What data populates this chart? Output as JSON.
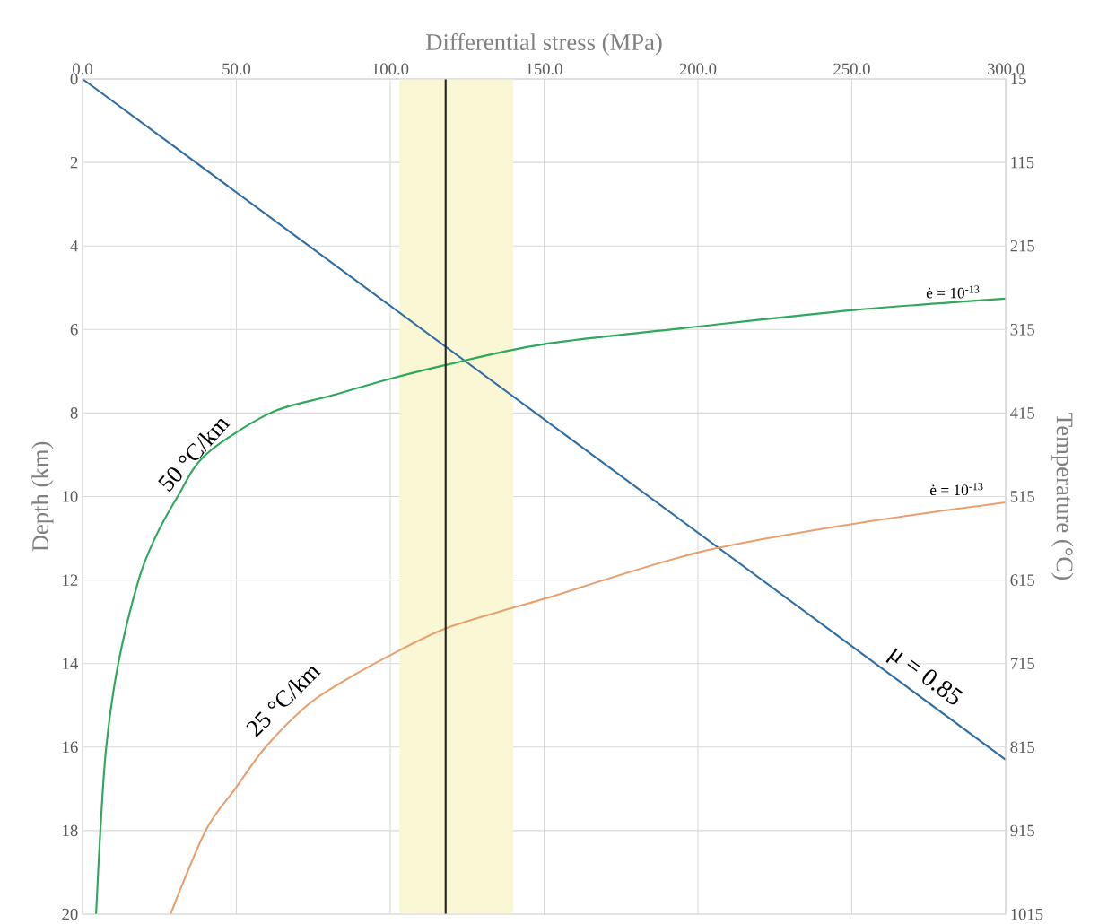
{
  "chart_data": {
    "type": "line",
    "xlabel": "Differential stress (MPa)",
    "ylabel": "Depth (km)",
    "y2label": "Temperature (°C)",
    "xlim": [
      0,
      300
    ],
    "xticks": [
      {
        "value": 0,
        "label": "0.0"
      },
      {
        "value": 50,
        "label": "50.0"
      },
      {
        "value": 100,
        "label": "100.0"
      },
      {
        "value": 150,
        "label": "150.0"
      },
      {
        "value": 200,
        "label": "200.0"
      },
      {
        "value": 250,
        "label": "250.0"
      },
      {
        "value": 300,
        "label": "300.0"
      }
    ],
    "ylim": [
      20,
      0
    ],
    "yticks": [
      0,
      2,
      4,
      6,
      8,
      10,
      12,
      14,
      16,
      18,
      20
    ],
    "y2lim": [
      1015,
      15
    ],
    "y2ticks": [
      15,
      115,
      215,
      315,
      415,
      515,
      615,
      715,
      815,
      915,
      1015
    ],
    "grid": true,
    "series": [
      {
        "color": "#2e6ca4",
        "x": [
          0,
          300
        ],
        "values": [
          0,
          16.3
        ]
      },
      {
        "color": "#2ea85a",
        "x": [
          4.4,
          5.8,
          7.7,
          11.6,
          18.2,
          23.5,
          30.9,
          40,
          61,
          80,
          100,
          118,
          150,
          200,
          250,
          300
        ],
        "values": [
          20,
          18,
          16,
          14,
          12,
          11,
          10,
          9,
          8,
          7.6,
          7.18,
          6.85,
          6.35,
          5.93,
          5.54,
          5.26
        ]
      },
      {
        "color": "#e8a070",
        "x": [
          28.6,
          40,
          49.6,
          59.5,
          73,
          83,
          100,
          118,
          140,
          150,
          200,
          250,
          300
        ],
        "values": [
          20,
          18,
          17,
          16,
          15,
          14.5,
          13.8,
          13.16,
          12.66,
          12.45,
          11.34,
          10.66,
          10.14
        ]
      }
    ],
    "ref_lines": [
      {
        "axis": "x",
        "value": 118,
        "color": "#262626"
      }
    ],
    "bands": [
      {
        "axis": "x",
        "from": 103,
        "to": 140,
        "color": "#faf7d4"
      }
    ],
    "annotations": [
      "50 °C/km",
      "25 °C/km",
      "ė = 10$^{-13}$",
      "ė = 10$^{-13}$",
      "μ = 0.85"
    ]
  }
}
